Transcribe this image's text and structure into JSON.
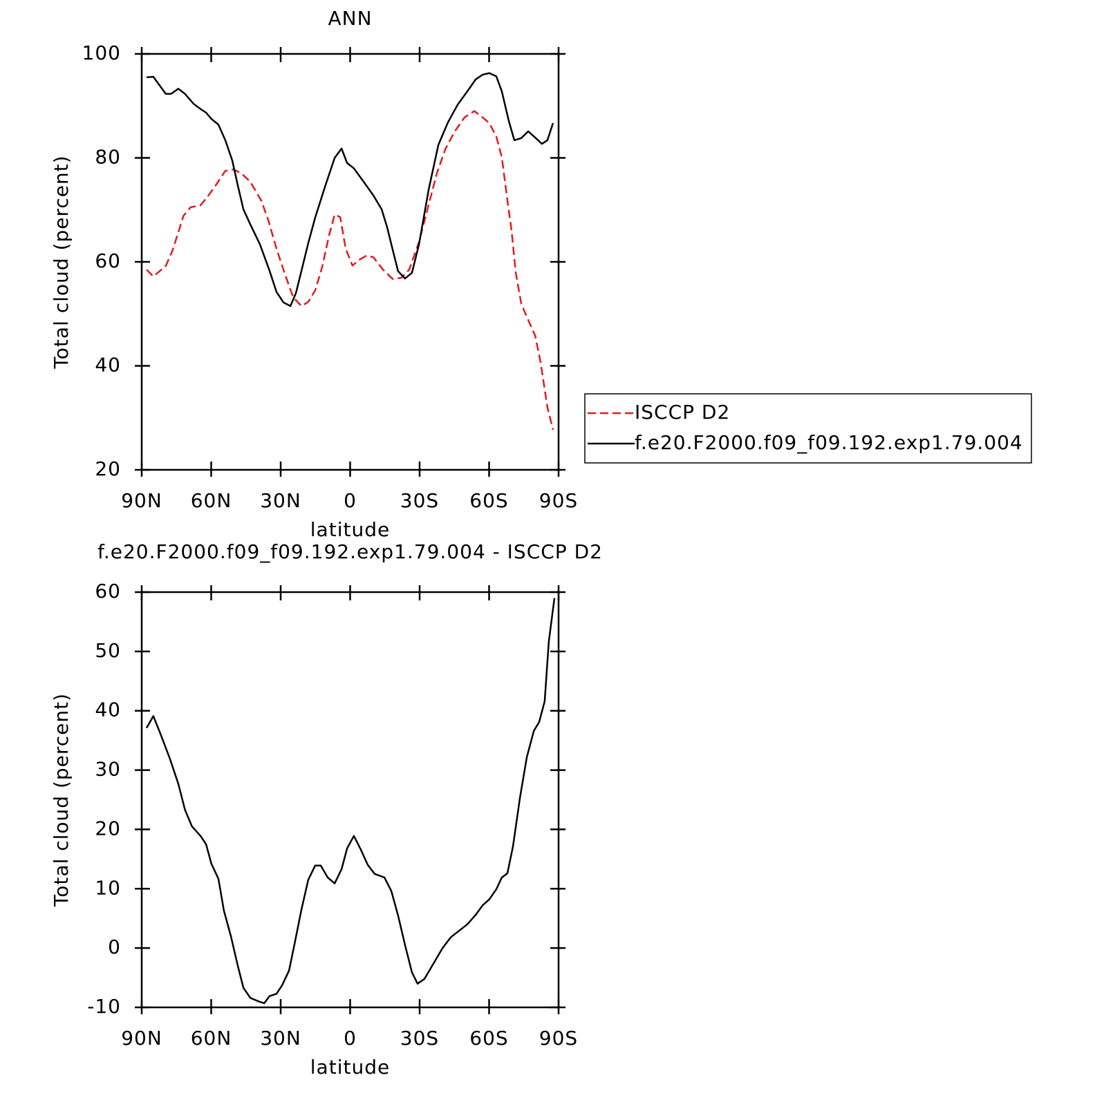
{
  "chart_data": [
    {
      "type": "line",
      "title": "ANN",
      "xlabel": "latitude",
      "ylabel": "Total cloud (percent)",
      "xlim": [
        90,
        -90
      ],
      "xticks": [
        {
          "value": 90,
          "label": "90N"
        },
        {
          "value": 60,
          "label": "60N"
        },
        {
          "value": 30,
          "label": "30N"
        },
        0,
        {
          "value": -30,
          "label": "30S"
        },
        {
          "value": -60,
          "label": "60S"
        },
        {
          "value": -90,
          "label": "90S"
        }
      ],
      "ylim": [
        20,
        100
      ],
      "yticks": [
        20,
        40,
        60,
        80,
        100
      ],
      "legend": "outside right",
      "series": [
        {
          "name": "ISCCP D2",
          "color": "#e41a1c",
          "dashed": true,
          "x": [
            87.9,
            85,
            79.6,
            76.7,
            71.9,
            68.9,
            64.6,
            61.6,
            58.1,
            53.9,
            50.3,
            46.7,
            43.1,
            38.4,
            35.4,
            31.8,
            28.2,
            24.6,
            21,
            18.1,
            15.1,
            12.1,
            9.1,
            6.7,
            4.3,
            1.9,
            -1,
            -4,
            -7,
            -10,
            -14.2,
            -18.4,
            -22,
            -25.5,
            -29.7,
            -33.9,
            -37.5,
            -41.1,
            -45.2,
            -49.4,
            -53.6,
            -56.6,
            -60.1,
            -63.1,
            -65.5,
            -67.9,
            -69.7,
            -71.5,
            -73.9,
            -77.5,
            -79.9,
            -82.2,
            -85.2,
            -87.6
          ],
          "values": [
            58.5,
            57.2,
            59.2,
            62.2,
            68.9,
            70.5,
            70.9,
            72.5,
            74.7,
            77.5,
            77.8,
            76.9,
            75.4,
            71.8,
            68.1,
            62.5,
            57.7,
            53.2,
            51.5,
            52.3,
            54.5,
            59,
            65.1,
            69.1,
            68.6,
            62.5,
            59.3,
            60.4,
            61.2,
            60.9,
            58.5,
            56.7,
            56.9,
            58.5,
            63.8,
            71,
            77.1,
            81.7,
            85.1,
            87.8,
            89,
            88,
            86.7,
            84.1,
            80.1,
            71.8,
            66,
            58,
            51.9,
            48.2,
            45.8,
            40.7,
            32,
            27.7
          ]
        },
        {
          "name": "f.e20.F2000.f09_f09.192.exp1.79.004",
          "color": "#000000",
          "dashed": false,
          "x": [
            87.9,
            85,
            79.6,
            77.3,
            74.2,
            71.3,
            67.6,
            64.6,
            62.2,
            59.9,
            56.9,
            53.9,
            50.9,
            48.5,
            46.1,
            43.1,
            39,
            34.8,
            31.8,
            28.8,
            25.8,
            23.4,
            21,
            18.1,
            15.1,
            10.9,
            6.7,
            3.7,
            1.3,
            -1.6,
            -5.2,
            -10,
            -13.6,
            -16,
            -18.4,
            -20.7,
            -23.7,
            -26.7,
            -29.7,
            -33.9,
            -38.1,
            -42.2,
            -46.4,
            -50.6,
            -54.2,
            -57.2,
            -60.1,
            -63.1,
            -65.5,
            -68.5,
            -70.9,
            -73.9,
            -76.9,
            -79.9,
            -82.8,
            -85.2,
            -87.6
          ],
          "values": [
            95.5,
            95.6,
            92.3,
            92.3,
            93.3,
            92.3,
            90.4,
            89.4,
            88.7,
            87.5,
            86.4,
            83.4,
            79.5,
            74.7,
            70.1,
            67.2,
            63.4,
            58.3,
            54.2,
            52.2,
            51.5,
            54,
            58.3,
            63.6,
            68.5,
            74.4,
            80,
            81.8,
            79,
            78,
            75.8,
            72.8,
            70.1,
            66.6,
            62.3,
            58.2,
            56.8,
            57.9,
            63.3,
            73.9,
            82.5,
            86.8,
            90.2,
            92.8,
            95.1,
            96,
            96.3,
            95.7,
            92.8,
            87.1,
            83.4,
            83.8,
            85.1,
            83.9,
            82.7,
            83.4,
            86.7
          ]
        }
      ]
    },
    {
      "type": "line",
      "title": "f.e20.F2000.f09_f09.192.exp1.79.004 - ISCCP D2",
      "xlabel": "latitude",
      "ylabel": "Total cloud (percent)",
      "xlim": [
        90,
        -90
      ],
      "xticks": [
        {
          "value": 90,
          "label": "90N"
        },
        {
          "value": 60,
          "label": "60N"
        },
        {
          "value": 30,
          "label": "30N"
        },
        0,
        {
          "value": -30,
          "label": "30S"
        },
        {
          "value": -60,
          "label": "60S"
        },
        {
          "value": -90,
          "label": "90S"
        }
      ],
      "ylim": [
        -10,
        60
      ],
      "yticks": [
        -10,
        0,
        10,
        20,
        30,
        40,
        50,
        60
      ],
      "series": [
        {
          "color": "#000000",
          "dashed": false,
          "x": [
            87.9,
            85,
            82,
            77.9,
            74.2,
            71.3,
            68.3,
            64.6,
            62.2,
            59.9,
            56.9,
            54.5,
            51.5,
            48.5,
            46.1,
            43.1,
            39.5,
            37.1,
            34.8,
            31.8,
            29.4,
            26.4,
            24,
            21,
            18.1,
            15.1,
            12.7,
            9.7,
            6.7,
            3.7,
            1.3,
            -1.6,
            -4.6,
            -7.6,
            -10.6,
            -14.8,
            -17.8,
            -20.7,
            -23.7,
            -26.7,
            -29.1,
            -32.1,
            -35.7,
            -39.9,
            -43.4,
            -47,
            -50.6,
            -54.2,
            -57.2,
            -60.1,
            -63.1,
            -65.5,
            -67.9,
            -70.3,
            -73.3,
            -76.3,
            -79.3,
            -81.6,
            -84,
            -85.8,
            -88.2
          ],
          "values": [
            37.1,
            39.1,
            36.2,
            32,
            27.7,
            23.3,
            20.5,
            18.9,
            17.5,
            14.2,
            11.7,
            6.3,
            2,
            -3,
            -6.7,
            -8.4,
            -9,
            -9.3,
            -8.1,
            -7.7,
            -6.3,
            -3.8,
            0.7,
            6.5,
            11.5,
            13.9,
            13.9,
            11.9,
            10.9,
            13.3,
            16.8,
            18.9,
            16.6,
            14,
            12.5,
            11.9,
            9.6,
            5.5,
            0.5,
            -4.1,
            -6,
            -5.2,
            -2.8,
            0,
            1.8,
            2.9,
            4,
            5.6,
            7.2,
            8.2,
            9.9,
            11.9,
            12.6,
            17.1,
            25.3,
            32.2,
            36.6,
            38.1,
            41.6,
            51.7,
            59
          ]
        }
      ]
    }
  ]
}
